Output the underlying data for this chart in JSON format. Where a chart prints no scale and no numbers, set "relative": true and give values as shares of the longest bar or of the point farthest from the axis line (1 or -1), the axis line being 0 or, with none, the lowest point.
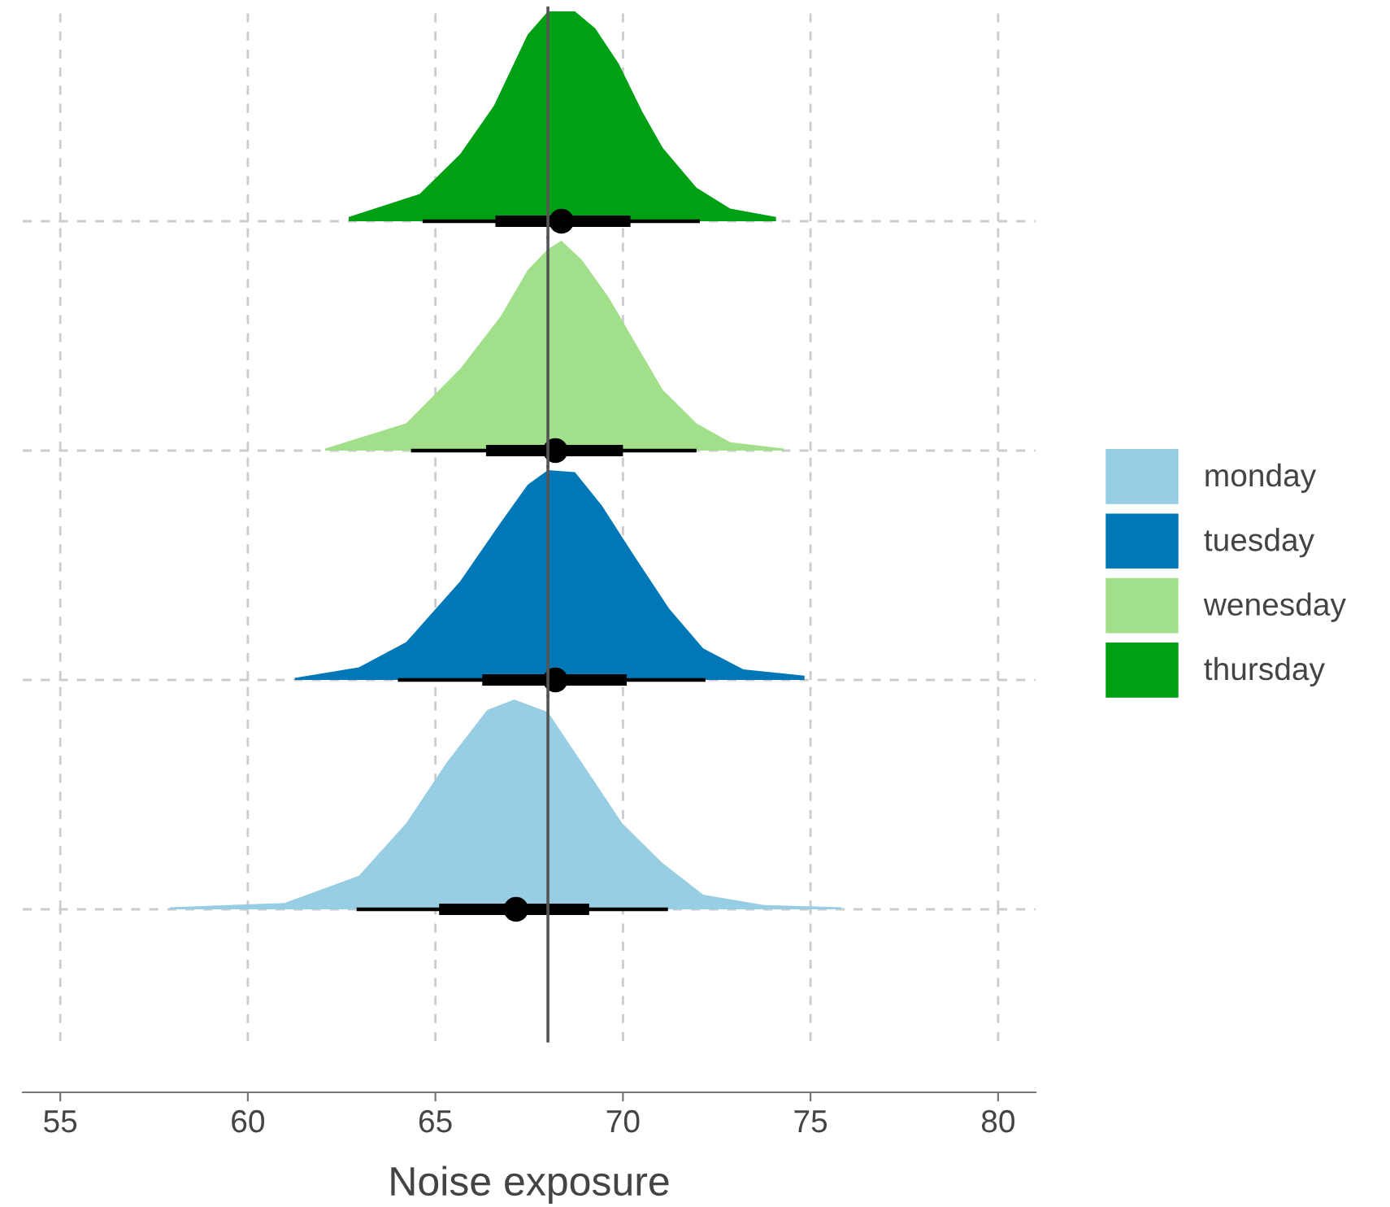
{
  "chart_data": [
    {
      "type": "area",
      "relative": true,
      "xlim": [
        54,
        81
      ],
      "xticks": [
        55,
        60,
        65,
        70,
        75,
        80
      ],
      "tick_labels": false,
      "grid": true,
      "legend": "right",
      "ref_lines": [
        {
          "axis": "x",
          "value": 68,
          "color": "#555555",
          "line_style": "solid"
        }
      ],
      "series": [
        {
          "name": "thursday",
          "color": "#00a014",
          "type": "area",
          "x": [
            62.69,
            64.58,
            65.66,
            66.56,
            67.46,
            68.0,
            68.72,
            69.26,
            69.89,
            70.52,
            71.06,
            71.96,
            72.86,
            74.08
          ],
          "values": [
            0.02,
            0.13,
            0.32,
            0.55,
            0.89,
            1.0,
            1.0,
            0.92,
            0.75,
            0.52,
            0.35,
            0.16,
            0.06,
            0.02
          ]
        },
        {
          "type": "line",
          "color": "#000000",
          "x": [
            64.66,
            72.05
          ],
          "values": [
            0,
            0
          ]
        },
        {
          "type": "line",
          "color": "#000000",
          "x": [
            66.6,
            70.2
          ],
          "values": [
            0,
            0
          ]
        },
        {
          "type": "scatter",
          "marker": "circle",
          "color": "#000000",
          "x": [
            68.36
          ],
          "values": [
            0
          ]
        }
      ]
    },
    {
      "type": "area",
      "relative": true,
      "xlim": [
        54,
        81
      ],
      "xticks": [
        55,
        60,
        65,
        70,
        75,
        80
      ],
      "tick_labels": false,
      "grid": true,
      "legend": "right",
      "ref_lines": [
        {
          "axis": "x",
          "value": 68,
          "color": "#555555",
          "line_style": "solid"
        }
      ],
      "series": [
        {
          "name": "wenesday",
          "color": "#a1df8a",
          "type": "area",
          "x": [
            62.06,
            64.22,
            65.66,
            66.74,
            67.46,
            68.0,
            68.36,
            68.9,
            69.62,
            70.34,
            71.06,
            71.96,
            72.86,
            74.29
          ],
          "values": [
            0.01,
            0.13,
            0.39,
            0.64,
            0.86,
            0.96,
            1.0,
            0.91,
            0.73,
            0.51,
            0.29,
            0.13,
            0.04,
            0.01
          ]
        },
        {
          "type": "line",
          "color": "#000000",
          "x": [
            64.35,
            71.96
          ],
          "values": [
            0,
            0
          ]
        },
        {
          "type": "line",
          "color": "#000000",
          "x": [
            66.35,
            70.0
          ],
          "values": [
            0,
            0
          ]
        },
        {
          "type": "scatter",
          "marker": "circle",
          "color": "#000000",
          "x": [
            68.2
          ],
          "values": [
            0
          ]
        }
      ]
    },
    {
      "type": "area",
      "relative": true,
      "xlim": [
        54,
        81
      ],
      "xticks": [
        55,
        60,
        65,
        70,
        75,
        80
      ],
      "tick_labels": false,
      "grid": true,
      "legend": "right",
      "ref_lines": [
        {
          "axis": "x",
          "value": 68,
          "color": "#555555",
          "line_style": "solid"
        }
      ],
      "series": [
        {
          "name": "tuesday",
          "color": "#0077b6",
          "type": "area",
          "x": [
            61.25,
            62.96,
            64.22,
            65.66,
            66.74,
            67.46,
            68.0,
            68.72,
            69.44,
            70.34,
            71.23,
            72.14,
            73.21,
            74.84
          ],
          "values": [
            0.01,
            0.06,
            0.18,
            0.47,
            0.75,
            0.93,
            1.0,
            0.99,
            0.83,
            0.58,
            0.34,
            0.15,
            0.05,
            0.02
          ]
        },
        {
          "type": "line",
          "color": "#000000",
          "x": [
            64.0,
            72.2
          ],
          "values": [
            0,
            0
          ]
        },
        {
          "type": "line",
          "color": "#000000",
          "x": [
            66.25,
            70.1
          ],
          "values": [
            0,
            0
          ]
        },
        {
          "type": "scatter",
          "marker": "circle",
          "color": "#000000",
          "x": [
            68.2
          ],
          "values": [
            0
          ]
        }
      ]
    },
    {
      "type": "area",
      "relative": true,
      "xlim": [
        54,
        81
      ],
      "xticks": [
        55,
        60,
        65,
        70,
        75,
        80
      ],
      "tick_labels": "x",
      "grid": true,
      "legend": "right",
      "xlabel": "Noise exposure",
      "ref_lines": [
        {
          "axis": "x",
          "value": 68,
          "color": "#555555",
          "line_style": "solid"
        }
      ],
      "series": [
        {
          "name": "monday",
          "color": "#97cee4",
          "type": "area",
          "x": [
            57.92,
            60.98,
            62.96,
            64.22,
            65.3,
            66.38,
            67.1,
            68.0,
            68.9,
            69.98,
            71.06,
            72.14,
            73.76,
            75.83
          ],
          "values": [
            0.01,
            0.03,
            0.16,
            0.41,
            0.7,
            0.95,
            1.0,
            0.94,
            0.7,
            0.41,
            0.22,
            0.07,
            0.02,
            0.01
          ]
        },
        {
          "type": "line",
          "color": "#000000",
          "x": [
            62.9,
            71.2
          ],
          "values": [
            0,
            0
          ]
        },
        {
          "type": "line",
          "color": "#000000",
          "x": [
            65.1,
            69.1
          ],
          "values": [
            0,
            0
          ]
        },
        {
          "type": "scatter",
          "marker": "circle",
          "color": "#000000",
          "x": [
            67.15
          ],
          "values": [
            0
          ]
        }
      ]
    }
  ]
}
